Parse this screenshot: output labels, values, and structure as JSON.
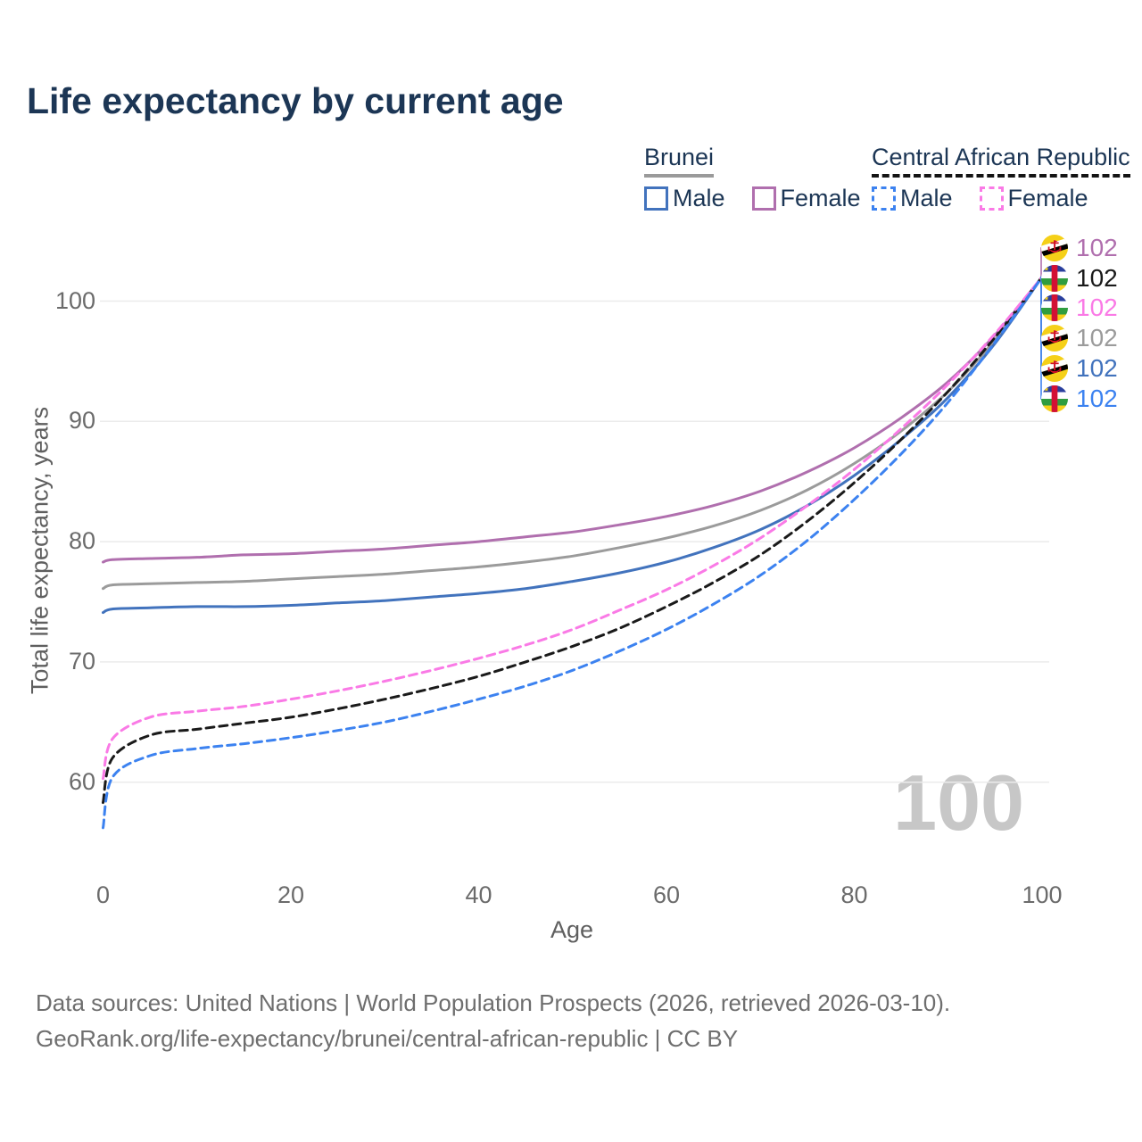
{
  "header": {
    "title": "Life expectancy by current age"
  },
  "legend": {
    "groups": [
      {
        "label": "Brunei",
        "underline_color": "#9a9a9a",
        "underline_style": "solid",
        "items": [
          {
            "label": "Male",
            "color": "#4273bd",
            "dashed": false
          },
          {
            "label": "Female",
            "color": "#b06fae",
            "dashed": false
          }
        ]
      },
      {
        "label": "Central African Republic",
        "underline_color": "#141414",
        "underline_style": "dashed",
        "items": [
          {
            "label": "Male",
            "color": "#3c82f0",
            "dashed": true
          },
          {
            "label": "Female",
            "color": "#fa7ae6",
            "dashed": true
          }
        ]
      }
    ]
  },
  "chart_data": {
    "type": "line",
    "title": "Life expectancy by current age",
    "xlabel": "Age",
    "ylabel": "Total life expectancy, years",
    "x_ticks": [
      0,
      20,
      40,
      60,
      80,
      100
    ],
    "y_ticks": [
      60,
      70,
      80,
      90,
      100
    ],
    "xlim": [
      0,
      100
    ],
    "ylim": [
      55,
      103
    ],
    "grid": "horizontal",
    "grid_color": "#ebebeb",
    "watermark": "100",
    "x": [
      0,
      1,
      5,
      10,
      15,
      20,
      25,
      30,
      35,
      40,
      45,
      50,
      55,
      60,
      65,
      70,
      75,
      80,
      85,
      90,
      95,
      100
    ],
    "series": [
      {
        "name": "Brunei Female",
        "country": "Brunei",
        "sex": "Female",
        "color": "#b06fae",
        "dash": "solid",
        "values": [
          78.3,
          78.5,
          78.6,
          78.7,
          78.9,
          79.0,
          79.2,
          79.4,
          79.7,
          80.0,
          80.4,
          80.8,
          81.4,
          82.1,
          83.0,
          84.2,
          85.8,
          87.8,
          90.3,
          93.3,
          97.2,
          102
        ],
        "end_label": "102",
        "end_slot": 0,
        "flag": "brunei"
      },
      {
        "name": "Central African Republic Both sexes",
        "country": "Central African Republic",
        "sex": "Both",
        "color": "#1a1a1a",
        "dash": "dashed",
        "values": [
          58.3,
          62.0,
          63.9,
          64.4,
          64.9,
          65.4,
          66.1,
          66.9,
          67.8,
          68.8,
          70.0,
          71.3,
          72.8,
          74.6,
          76.6,
          78.9,
          81.7,
          84.9,
          88.5,
          92.5,
          97.0,
          102
        ],
        "end_label": "102",
        "end_slot": 1,
        "flag": "car"
      },
      {
        "name": "Central African Republic Female",
        "country": "Central African Republic",
        "sex": "Female",
        "color": "#fa7ae6",
        "dash": "dashed",
        "values": [
          60.3,
          63.6,
          65.4,
          65.9,
          66.3,
          66.9,
          67.6,
          68.4,
          69.3,
          70.3,
          71.4,
          72.7,
          74.3,
          76.0,
          78.0,
          80.3,
          83.0,
          86.0,
          89.4,
          93.1,
          97.3,
          102
        ],
        "end_label": "102",
        "end_slot": 2,
        "flag": "car"
      },
      {
        "name": "Brunei Both sexes",
        "country": "Brunei",
        "sex": "Both",
        "color": "#9b9b9b",
        "dash": "solid",
        "values": [
          76.1,
          76.4,
          76.5,
          76.6,
          76.7,
          76.9,
          77.1,
          77.3,
          77.6,
          77.9,
          78.3,
          78.8,
          79.5,
          80.3,
          81.3,
          82.6,
          84.3,
          86.5,
          89.2,
          92.5,
          96.8,
          102
        ],
        "end_label": "102",
        "end_slot": 3,
        "flag": "brunei"
      },
      {
        "name": "Brunei Male",
        "country": "Brunei",
        "sex": "Male",
        "color": "#4273bd",
        "dash": "solid",
        "values": [
          74.1,
          74.4,
          74.5,
          74.6,
          74.6,
          74.7,
          74.9,
          75.1,
          75.4,
          75.7,
          76.1,
          76.7,
          77.4,
          78.3,
          79.5,
          81.0,
          83.0,
          85.5,
          88.5,
          92.0,
          96.5,
          102
        ],
        "end_label": "102",
        "end_slot": 4,
        "flag": "brunei"
      },
      {
        "name": "Central African Republic Male",
        "country": "Central African Republic",
        "sex": "Male",
        "color": "#3c82f0",
        "dash": "dashed",
        "values": [
          56.2,
          60.4,
          62.2,
          62.8,
          63.2,
          63.7,
          64.3,
          65.0,
          65.9,
          66.9,
          68.0,
          69.3,
          70.9,
          72.7,
          74.8,
          77.2,
          80.1,
          83.5,
          87.3,
          91.6,
          96.6,
          102
        ],
        "end_label": "102",
        "end_slot": 5,
        "flag": "car"
      }
    ],
    "flag_colors": {
      "brunei": {
        "field": "#f5d018",
        "stripe_white": "#ffffff",
        "stripe_black": "#000000",
        "crest": "#cf1126"
      },
      "car": {
        "blue": "#2a3f9d",
        "white": "#ffffff",
        "green": "#2f9d3f",
        "yellow": "#f5d018",
        "red": "#d21034",
        "star": "#f5d018"
      }
    }
  },
  "footer": {
    "line1": "Data sources: United Nations | World Population Prospects (2026, retrieved 2026-03-10).",
    "line2": "GeoRank.org/life-expectancy/brunei/central-african-republic | CC BY"
  }
}
